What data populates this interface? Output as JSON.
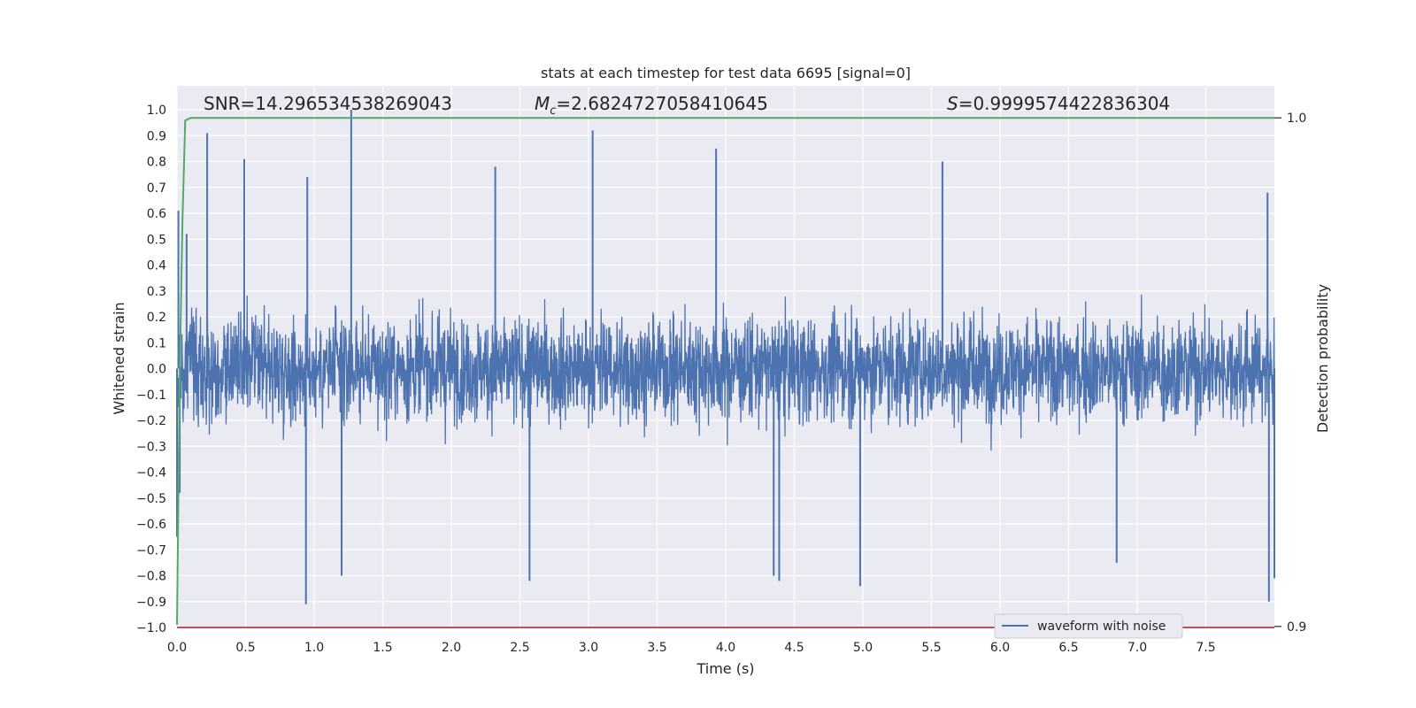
{
  "chart_data": {
    "type": "line",
    "title": "stats at each timestep for test data 6695 [signal=0]",
    "xlabel": "Time (s)",
    "ylabel": "Whitened strain",
    "y2label": "Detection probability",
    "xlim": [
      0.0,
      8.0
    ],
    "ylim": [
      -1.0,
      1.0
    ],
    "y2lim": [
      0.8998,
      1.0016
    ],
    "x_ticks": [
      "0.0",
      "0.5",
      "1.0",
      "1.5",
      "2.0",
      "2.5",
      "3.0",
      "3.5",
      "4.0",
      "4.5",
      "5.0",
      "5.5",
      "6.0",
      "6.5",
      "7.0",
      "7.5"
    ],
    "y_ticks": [
      "1.0",
      "0.9",
      "0.8",
      "0.7",
      "0.6",
      "0.5",
      "0.4",
      "0.3",
      "0.2",
      "0.1",
      "0.0",
      "−0.1",
      "−0.2",
      "−0.3",
      "−0.4",
      "−0.5",
      "−0.6",
      "−0.7",
      "−0.8",
      "−0.9",
      "−1.0"
    ],
    "y2_ticks": [
      "1.0",
      "0.9"
    ],
    "grid": true,
    "legend": {
      "placement": "lower-right",
      "entries": [
        "waveform with noise"
      ]
    },
    "annotations": {
      "snr": "SNR=14.296534538269043",
      "mc_symbol": "M",
      "mc_subscript": "c",
      "mc_value": "=2.6824727058410645",
      "s_symbol": "S",
      "s_value": "=0.9999574422836304"
    },
    "series": [
      {
        "name": "waveform with noise",
        "axis": "left",
        "color": "#4c72b0",
        "note_pattern": "dense noise trace, approx. ±0.3 bulk with spikes",
        "x": [
          0.0,
          0.01,
          0.02,
          0.07,
          0.22,
          0.49,
          0.94,
          0.95,
          1.2,
          1.27,
          2.32,
          2.57,
          3.03,
          3.93,
          4.35,
          4.39,
          4.98,
          5.58,
          6.85,
          7.95,
          7.96,
          8.0
        ],
        "values": [
          -0.65,
          0.61,
          -0.48,
          0.52,
          0.91,
          0.81,
          -0.91,
          0.74,
          -0.8,
          1.0,
          0.78,
          -0.82,
          0.92,
          0.85,
          -0.8,
          -0.82,
          -0.84,
          0.8,
          -0.75,
          0.68,
          -0.9,
          -0.81
        ]
      },
      {
        "name": "",
        "axis": "right",
        "color": "#55a868",
        "x": [
          0.0,
          0.02,
          0.04,
          0.06,
          0.1,
          8.0
        ],
        "values": [
          0.9003,
          0.95,
          0.98,
          0.9995,
          1.0,
          1.0
        ]
      },
      {
        "name": "",
        "axis": "right",
        "color": "#c44e52",
        "x": [
          0.0,
          8.0
        ],
        "values": [
          0.8998,
          0.8998
        ]
      }
    ]
  }
}
